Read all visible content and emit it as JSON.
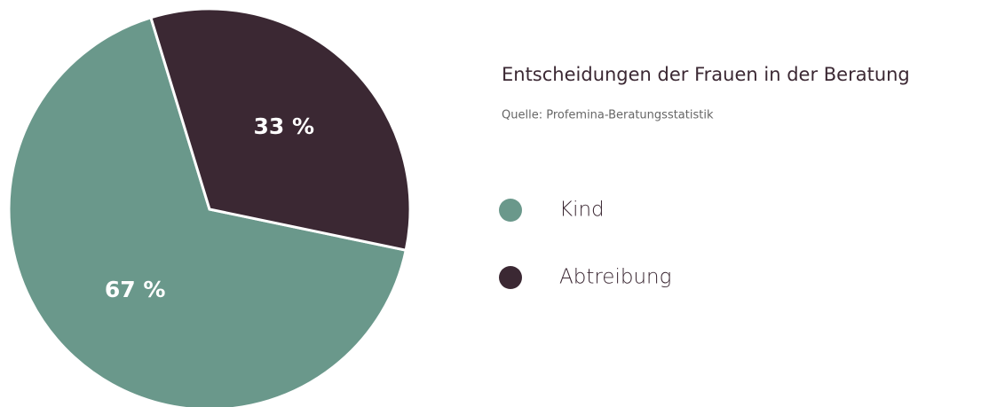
{
  "chart_data": {
    "type": "pie",
    "title": "Entscheidungen der Frauen in der Beratung",
    "subtitle": "Quelle: Profemina-Beratungsstatistik",
    "categories": [
      "Kind",
      "Abtreibung"
    ],
    "values": [
      67,
      33
    ],
    "value_labels": [
      "67 %",
      "33 %"
    ],
    "colors": [
      "#6a988b",
      "#3b2833"
    ]
  }
}
